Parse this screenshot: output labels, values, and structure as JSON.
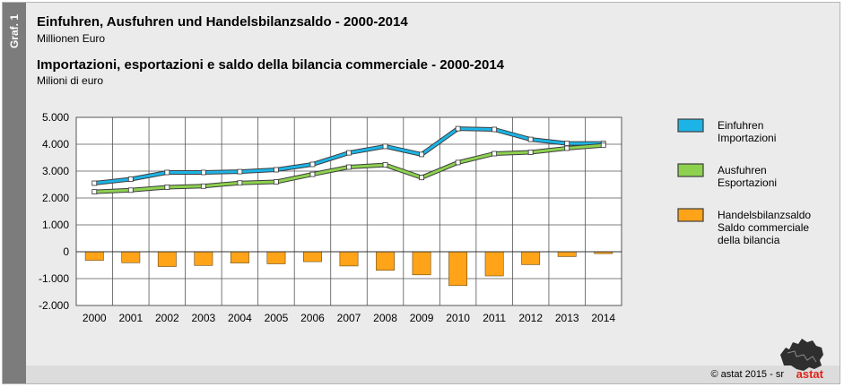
{
  "sidebar": {
    "label": "Graf. 1"
  },
  "header": {
    "title_de": "Einfuhren, Ausfuhren und Handelsbilanzsaldo - 2000-2014",
    "subtitle_de": "Millionen Euro",
    "title_it": "Importazioni, esportazioni e saldo della bilancia commerciale - 2000-2014",
    "subtitle_it": "Milioni di euro"
  },
  "footer": {
    "credit": "©  astat 2015 - sr",
    "logo_text": "astat"
  },
  "chart_data": {
    "type": "line",
    "categories": [
      "2000",
      "2001",
      "2002",
      "2003",
      "2004",
      "2005",
      "2006",
      "2007",
      "2008",
      "2009",
      "2010",
      "2011",
      "2012",
      "2013",
      "2014"
    ],
    "ylim": [
      -2000,
      5000
    ],
    "yticks": [
      -2000,
      -1000,
      0,
      1000,
      2000,
      3000,
      4000,
      5000
    ],
    "ytick_labels": [
      "-2.000",
      "-1.000",
      "0",
      "1.000",
      "2.000",
      "3.000",
      "4.000",
      "5.000"
    ],
    "grid": true,
    "legend_position": "right",
    "series": [
      {
        "name": "Einfuhren\nImportazioni",
        "type": "line",
        "color": "#1cb4e6",
        "values": [
          2550,
          2700,
          2950,
          2950,
          2980,
          3050,
          3250,
          3680,
          3920,
          3620,
          4580,
          4550,
          4180,
          4030,
          4030
        ]
      },
      {
        "name": "Ausfuhren\nEsportazioni",
        "type": "line",
        "color": "#8dd14f",
        "values": [
          2230,
          2290,
          2400,
          2440,
          2560,
          2600,
          2880,
          3150,
          3230,
          2760,
          3320,
          3650,
          3700,
          3850,
          3960
        ]
      },
      {
        "name": "Handelsbilanzsaldo\nSaldo commerciale\ndella bilancia",
        "type": "bar",
        "color": "#ffa319",
        "values": [
          -320,
          -410,
          -550,
          -510,
          -420,
          -450,
          -370,
          -530,
          -690,
          -860,
          -1260,
          -900,
          -480,
          -180,
          -70
        ]
      }
    ]
  }
}
